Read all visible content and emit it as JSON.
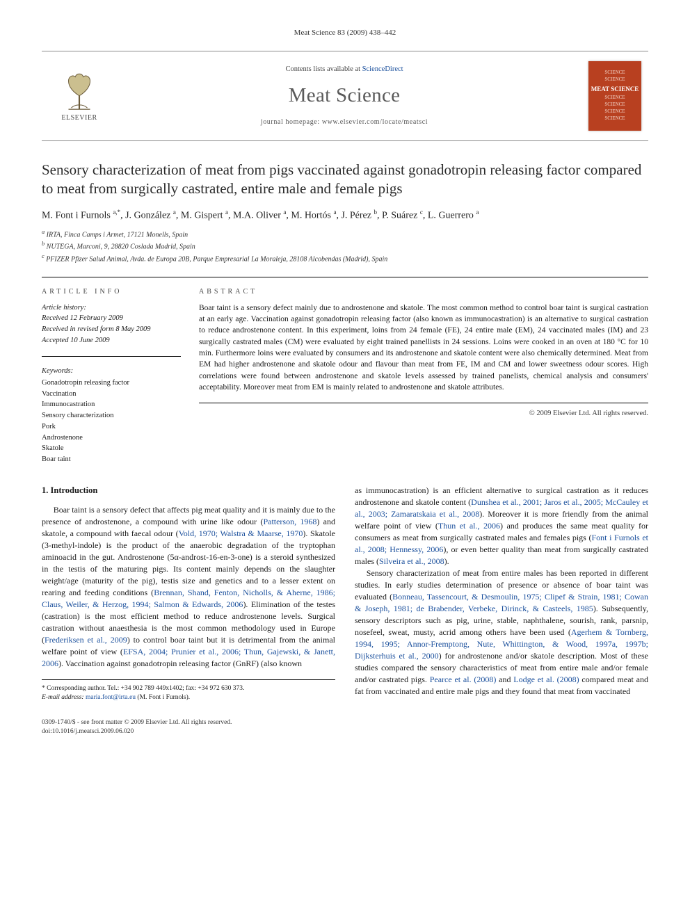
{
  "running_header": "Meat Science 83 (2009) 438–442",
  "masthead": {
    "elsevier_label": "ELSEVIER",
    "contents_prefix": "Contents lists available at ",
    "contents_link": "ScienceDirect",
    "journal_name": "Meat Science",
    "homepage_prefix": "journal homepage: ",
    "homepage_url": "www.elsevier.com/locate/meatsci",
    "cover_lines": [
      "SCIENCE",
      "SCIENCE",
      "MEAT SCIENCE",
      "SCIENCE",
      "SCIENCE",
      "SCIENCE",
      "SCIENCE"
    ],
    "colors": {
      "border": "#888888",
      "link": "#1a4f9c",
      "cover_bg": "#b84020",
      "cover_text": "#f3d7cc",
      "cover_title": "#ffffff"
    }
  },
  "article": {
    "title": "Sensory characterization of meat from pigs vaccinated against gonadotropin releasing factor compared to meat from surgically castrated, entire male and female pigs",
    "authors_html": "M. Font i Furnols <sup>a,*</sup>, J. González <sup>a</sup>, M. Gispert <sup>a</sup>, M.A. Oliver <sup>a</sup>, M. Hortós <sup>a</sup>, J. Pérez <sup>b</sup>, P. Suárez <sup>c</sup>, L. Guerrero <sup>a</sup>",
    "affiliations": [
      "a IRTA, Finca Camps i Armet, 17121 Monells, Spain",
      "b NUTEGA, Marconi, 9, 28820 Coslada Madrid, Spain",
      "c PFIZER Pfizer Salud Animal, Avda. de Europa 20B, Parque Empresarial La Moraleja, 28108 Alcobendas (Madrid), Spain"
    ]
  },
  "article_info": {
    "heading": "ARTICLE INFO",
    "history_heading": "Article history:",
    "history": [
      "Received 12 February 2009",
      "Received in revised form 8 May 2009",
      "Accepted 10 June 2009"
    ],
    "keywords_heading": "Keywords:",
    "keywords": [
      "Gonadotropin releasing factor",
      "Vaccination",
      "Immunocastration",
      "Sensory characterization",
      "Pork",
      "Androstenone",
      "Skatole",
      "Boar taint"
    ]
  },
  "abstract": {
    "heading": "ABSTRACT",
    "text": "Boar taint is a sensory defect mainly due to androstenone and skatole. The most common method to control boar taint is surgical castration at an early age. Vaccination against gonadotropin releasing factor (also known as immunocastration) is an alternative to surgical castration to reduce androstenone content. In this experiment, loins from 24 female (FE), 24 entire male (EM), 24 vaccinated males (IM) and 23 surgically castrated males (CM) were evaluated by eight trained panellists in 24 sessions. Loins were cooked in an oven at 180 °C for 10 min. Furthermore loins were evaluated by consumers and its androstenone and skatole content were also chemically determined. Meat from EM had higher androstenone and skatole odour and flavour than meat from FE, IM and CM and lower sweetness odour scores. High correlations were found between androstenone and skatole levels assessed by trained panelists, chemical analysis and consumers' acceptability. Moreover meat from EM is mainly related to androstenone and skatole attributes.",
    "copyright": "© 2009 Elsevier Ltd. All rights reserved."
  },
  "body": {
    "section_heading": "1. Introduction",
    "col1_p1_pre": "Boar taint is a sensory defect that affects pig meat quality and it is mainly due to the presence of androstenone, a compound with urine like odour (",
    "col1_link1": "Patterson, 1968",
    "col1_p1_mid1": ") and skatole, a compound with faecal odour (",
    "col1_link2": "Vold, 1970; Walstra & Maarse, 1970",
    "col1_p1_mid2": "). Skatole (3-methyl-indole) is the product of the anaerobic degradation of the tryptophan aminoacid in the gut. Androstenone (5α-androst-16-en-3-one) is a steroid synthesized in the testis of the maturing pigs. Its content mainly depends on the slaughter weight/age (maturity of the pig), testis size and genetics and to a lesser extent on rearing and feeding conditions (",
    "col1_link3": "Brennan, Shand, Fenton, Nicholls, & Aherne, 1986; Claus, Weiler, & Herzog, 1994; Salmon & Edwards, 2006",
    "col1_p1_mid3": "). Elimination of the testes (castration) is the most efficient method to reduce androstenone levels. Surgical castration without anaesthesia is the most common methodology used in Europe (",
    "col1_link4": "Frederiksen et al., 2009",
    "col1_p1_mid4": ") to control boar taint but it is detrimental from the animal welfare point of view (",
    "col1_link5": "EFSA, 2004; Prunier et al., 2006; Thun, Gajewski, & Janett, 2006",
    "col1_p1_end": "). Vaccination against gonadotropin releasing factor (GnRF) (also known",
    "col2_p1_pre": "as immunocastration) is an efficient alternative to surgical castration as it reduces androstenone and skatole content (",
    "col2_link1": "Dunshea et al., 2001; Jaros et al., 2005; McCauley et al., 2003; Zamaratskaia et al., 2008",
    "col2_p1_mid1": "). Moreover it is more friendly from the animal welfare point of view (",
    "col2_link2": "Thun et al., 2006",
    "col2_p1_mid2": ") and produces the same meat quality for consumers as meat from surgically castrated males and females pigs (",
    "col2_link3": "Font i Furnols et al., 2008; Hennessy, 2006",
    "col2_p1_mid3": "), or even better quality than meat from surgically castrated males (",
    "col2_link4": "Silveira et al., 2008",
    "col2_p1_end": ").",
    "col2_p2_pre": "Sensory characterization of meat from entire males has been reported in different studies. In early studies determination of presence or absence of boar taint was evaluated (",
    "col2_link5": "Bonneau, Tassencourt, & Desmoulin, 1975; Clipef & Strain, 1981; Cowan & Joseph, 1981; de Brabender, Verbeke, Dirinck, & Casteels, 1985",
    "col2_p2_mid1": "). Subsequently, sensory descriptors such as pig, urine, stable, naphthalene, sourish, rank, parsnip, nosefeel, sweat, musty, acrid among others have been used (",
    "col2_link6": "Agerhem & Tornberg, 1994, 1995; Annor-Fremptong, Nute, Whittington, & Wood, 1997a, 1997b; Dijksterhuis et al., 2000",
    "col2_p2_mid2": ") for androstenone and/or skatole description. Most of these studies compared the sensory characteristics of meat from entire male and/or female and/or castrated pigs. ",
    "col2_link7": "Pearce et al. (2008)",
    "col2_p2_mid3": " and ",
    "col2_link8": "Lodge et al. (2008)",
    "col2_p2_end": " compared meat and fat from vaccinated and entire male pigs and they found that meat from vaccinated"
  },
  "footnote": {
    "corr_label": "* Corresponding author. Tel.: +34 902 789 449x1402; fax: +34 972 630 373.",
    "email_label": "E-mail address:",
    "email": "maria.font@irta.eu",
    "email_suffix": "(M. Font i Furnols)."
  },
  "bottom": {
    "line1": "0309-1740/$ - see front matter © 2009 Elsevier Ltd. All rights reserved.",
    "line2": "doi:10.1016/j.meatsci.2009.06.020"
  }
}
